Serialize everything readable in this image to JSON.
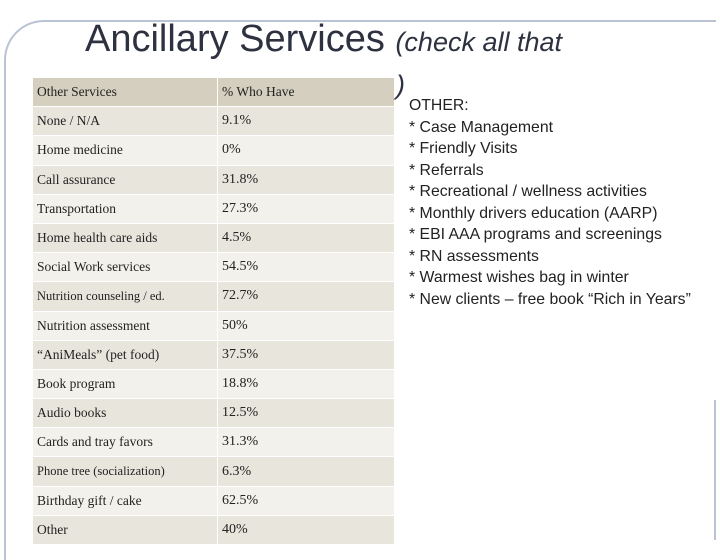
{
  "header": {
    "title": "Ancillary Services",
    "title_note": "(check all that",
    "title_note_end": ")"
  },
  "table": {
    "columns": [
      "Other Services",
      "% Who Have"
    ],
    "rows": [
      [
        "None / N/A",
        "9.1%"
      ],
      [
        "Home medicine",
        "0%"
      ],
      [
        "Call assurance",
        "31.8%"
      ],
      [
        "Transportation",
        "27.3%"
      ],
      [
        "Home health care aids",
        "4.5%"
      ],
      [
        "Social Work services",
        "54.5%"
      ],
      [
        "Nutrition counseling / ed.",
        "72.7%"
      ],
      [
        "Nutrition assessment",
        "50%"
      ],
      [
        "“AniMeals” (pet food)",
        "37.5%"
      ],
      [
        "Book program",
        "18.8%"
      ],
      [
        "Audio books",
        "12.5%"
      ],
      [
        "Cards and tray favors",
        "31.3%"
      ],
      [
        "Phone tree (socialization)",
        "6.3%"
      ],
      [
        "Birthday gift / cake",
        "62.5%"
      ],
      [
        "Other",
        "40%"
      ]
    ]
  },
  "other": {
    "heading": "OTHER:",
    "items": [
      "* Case Management",
      "* Friendly Visits",
      "* Referrals",
      "* Recreational / wellness activities",
      "* Monthly drivers education (AARP)",
      "* EBI  AAA programs and screenings",
      "* RN assessments",
      "* Warmest wishes bag in winter",
      "* New clients – free book “Rich in Years”"
    ]
  }
}
